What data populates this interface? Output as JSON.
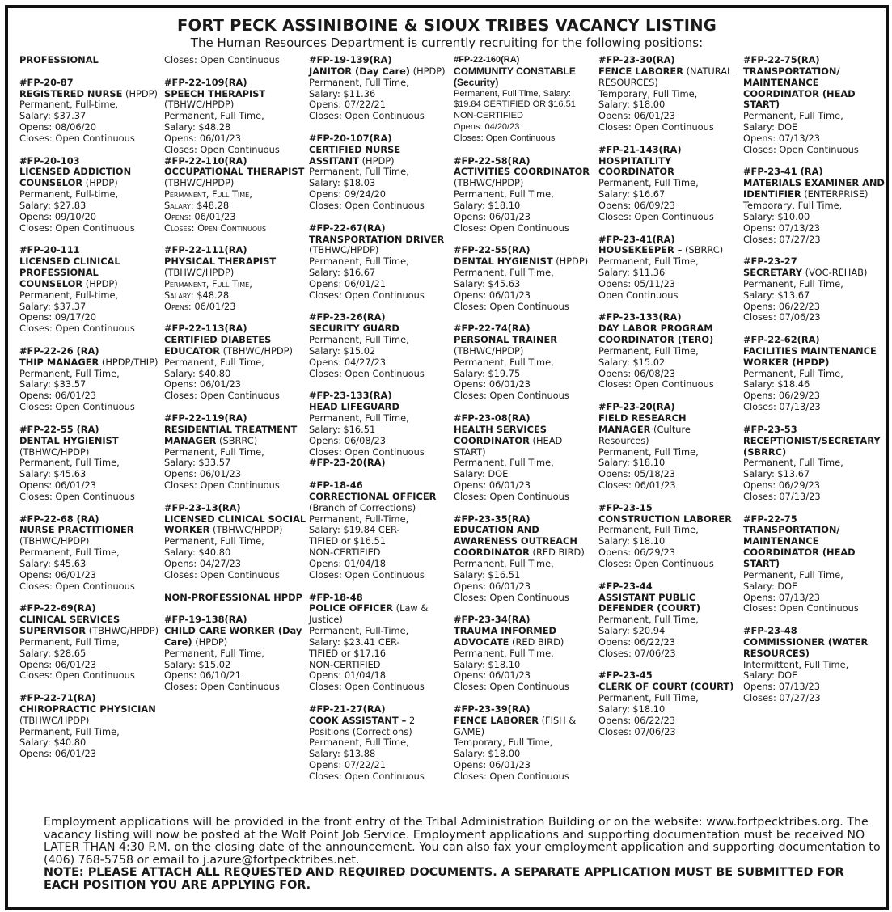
{
  "header": {
    "title": "FORT PECK ASSINIBOINE & SIOUX TRIBES VACANCY LISTING",
    "subtitle": "The Human Resources Department is currently recruiting for the following positions:"
  },
  "columns": [
    [
      {
        "section": "PROFESSIONAL"
      },
      {
        "code": "#FP-20-87",
        "title": "REGISTERED NURSE",
        "note": "(HPDP)",
        "lines": [
          "Permanent, Full-time,",
          "Salary: $37.37",
          "Opens: 08/06/20",
          "Closes: Open Continuous"
        ]
      },
      {
        "code": "#FP-20-103",
        "title": "LICENSED ADDICTION COUNSELOR",
        "note": "(HPDP)",
        "lines": [
          "Permanent, Full-time,",
          "Salary: $27.83",
          "Opens: 09/10/20",
          "Closes: Open Continuous"
        ]
      },
      {
        "code": "#FP-20-111",
        "title": "LICENSED CLINICAL PROFESSIONAL COUNSELOR",
        "note": "(HPDP)",
        "lines": [
          "Permanent, Full-time,",
          "Salary: $37.37",
          "Opens: 09/17/20",
          "Closes: Open Continuous"
        ]
      },
      {
        "code": "#FP-22-26 (RA)",
        "title": "THIP MANAGER",
        "note": "(HPDP/THIP)",
        "lines": [
          "Permanent, Full Time,",
          "Salary: $33.57",
          "Opens: 06/01/23",
          "Closes: Open Continuous"
        ]
      },
      {
        "code": "#FP-22-55 (RA)",
        "title": "DENTAL HYGIENIST",
        "note": "(TBHWC/HPDP)",
        "lines": [
          "Permanent, Full Time,",
          "Salary: $45.63",
          "Opens: 06/01/23",
          "Closes: Open Continuous"
        ]
      },
      {
        "code": "#FP-22-68 (RA)",
        "title": "NURSE PRACTITIONER",
        "note": "(TBHWC/HPDP)",
        "lines": [
          "Permanent, Full Time,",
          "Salary: $45.63",
          "Opens: 06/01/23",
          "Closes: Open Continuous"
        ]
      },
      {
        "code": "#FP-22-69(RA)",
        "title": "CLINICAL SERVICES SUPERVISOR",
        "note": "(TBHWC/HPDP)",
        "lines": [
          "Permanent, Full Time,",
          "Salary: $28.65",
          "Opens: 06/01/23",
          "Closes: Open Continuous"
        ]
      },
      {
        "code": "#FP-22-71(RA)",
        "title": "CHIROPRACTIC PHYSICIAN",
        "note": "(TBHWC/HPDP)",
        "lines": [
          "Permanent, Full Time,",
          "Salary: $40.80",
          "Opens: 06/01/23"
        ]
      }
    ],
    [
      {
        "lines": [
          "Closes: Open Continuous"
        ]
      },
      {
        "code": "#FP-22-109(RA)",
        "title": "SPEECH THERAPIST",
        "note": "(TBHWC/HPDP)",
        "lines": [
          "Permanent, Full Time,",
          "Salary: $48.28",
          "Opens: 06/01/23",
          "Closes: Open Continuous"
        ],
        "tight": true
      },
      {
        "code": "#FP-22-110(RA)",
        "title": "OCCUPATIONAL THERAPIST",
        "note": "(TBHWC/HPDP)",
        "lines": [
          "Permanent, Full Time,",
          "Salary: $48.28",
          "Opens: 06/01/23",
          "Closes: Open Continuous"
        ],
        "smallcaps": true
      },
      {
        "code": "#FP-22-111(RA)",
        "title": "PHYSICAL THERAPIST",
        "note": "(TBHWC/HPDP)",
        "lines": [
          "Permanent, Full Time,",
          "Salary: $48.28",
          "Opens: 06/01/23"
        ],
        "smallcaps": true
      },
      {
        "code": "#FP-22-113(RA)",
        "title": "CERTIFIED DIABETES EDUCATOR",
        "note": "(TBHWC/HPDP)",
        "lines": [
          "Permanent, Full Time,",
          "Salary: $40.80",
          "Opens: 06/01/23",
          "Closes: Open Continuous"
        ]
      },
      {
        "code": "#FP-22-119(RA)",
        "title": "RESIDENTIAL TREATMENT MANAGER",
        "note": "(SBRRC)",
        "lines": [
          "Permanent, Full Time,",
          "Salary: $33.57",
          "Opens: 06/01/23",
          "Closes: Open Continuous"
        ]
      },
      {
        "code": "#FP-23-13(RA)",
        "title": "LICENSED CLINICAL SOCIAL WORKER",
        "note": "(TBHWC/HPDP)",
        "lines": [
          "Permanent, Full Time,",
          "Salary: $40.80",
          "Opens: 04/27/23",
          "Closes: Open Continuous"
        ]
      },
      {
        "section": "NON-PROFESSIONAL HPDP"
      },
      {
        "code": "#FP-19-138(RA)",
        "title": "CHILD CARE WORKER (Day Care)",
        "note": "(HPDP)",
        "lines": [
          "Permanent, Full Time,",
          "Salary: $15.02",
          "Opens: 06/10/21",
          "Closes: Open Continuous"
        ]
      }
    ],
    [
      {
        "code": "#FP-19-139(RA)",
        "title": "JANITOR (Day Care)",
        "note": "(HPDP)",
        "lines": [
          "Permanent, Full Time,",
          "Salary: $11.36",
          "Opens: 07/22/21",
          "Closes: Open Continuous"
        ]
      },
      {
        "code": "#FP-20-107(RA)",
        "title": "CERTIFIED NURSE ASSITANT",
        "note": "(HPDP)",
        "lines": [
          "Permanent, Full Time,",
          "Salary: $18.03",
          "Opens: 09/24/20",
          "Closes: Open Continuous"
        ]
      },
      {
        "code": "#FP-22-67(RA)",
        "title": "TRANSPORTATION DRIVER",
        "note": "(TBHWC/HPDP)",
        "lines": [
          "Permanent, Full Time,",
          "Salary: $16.67",
          "Opens: 06/01/21",
          "Closes: Open Continuous"
        ]
      },
      {
        "code": "#FP-23-26(RA)",
        "title": "SECURITY GUARD",
        "note": "",
        "lines": [
          "Permanent, Full Time,",
          "Salary: $15.02",
          "Opens: 04/27/23",
          "Closes: Open Continuous"
        ]
      },
      {
        "code": "#FP-23-133(RA)",
        "title": "HEAD LIFEGUARD",
        "note": "",
        "lines": [
          "Permanent, Full Time,",
          "Salary: $16.51",
          "Opens: 06/08/23",
          "Closes: Open Continuous"
        ],
        "tight": true
      },
      {
        "code": "#FP-23-20(RA)",
        "title": "",
        "note": "",
        "lines": []
      },
      {
        "code": "#FP-18-46",
        "title": "CORRECTIONAL OFFICER",
        "note": "(Branch of Corrections)",
        "lines": [
          "Permanent, Full-Time,",
          "Salary: $19.84 CER-",
          "TIFIED or $16.51",
          "NON-CERTIFIED",
          "Opens: 01/04/18",
          "Closes: Open Continuous"
        ]
      },
      {
        "code": "#FP-18-48",
        "title": "POLICE OFFICER",
        "note": "(Law & Justice)",
        "lines": [
          "Permanent, Full-Time,",
          "Salary: $23.41 CER-",
          "TIFIED or $17.16",
          "NON-CERTIFIED",
          "Opens: 01/04/18",
          "Closes: Open Continuous"
        ]
      },
      {
        "code": "#FP-21-27(RA)",
        "title": "COOK ASSISTANT –",
        "note": "2 Positions (Corrections)",
        "lines": [
          "Permanent, Full Time,",
          "Salary: $13.88",
          "Opens: 07/22/21",
          "Closes: Open Continuous"
        ]
      }
    ],
    [
      {
        "code": "#FP-22-160(RA)",
        "title": "COMMUNITY CONSTABLE (Security)",
        "note": "",
        "lines": [
          "Permanent, Full Time, Salary: $19.84 CERTIFIED OR $16.51 NON-CERTIFIED",
          "Opens: 04/20/23",
          "Closes: Open Continuous"
        ],
        "narrow": true
      },
      {
        "code": "#FP-22-58(RA)",
        "title": "ACTIVITIES COORDINATOR",
        "note": "(TBHWC/HPDP)",
        "lines": [
          "Permanent, Full Time,",
          "Salary: $18.10",
          "Opens: 06/01/23",
          "Closes: Open Continuous"
        ]
      },
      {
        "code": "#FP-22-55(RA)",
        "title": "DENTAL HYGIENIST",
        "note": "(HPDP)",
        "lines": [
          "Permanent, Full Time,",
          "Salary: $45.63",
          "Opens: 06/01/23",
          "Closes: Open Continuous"
        ]
      },
      {
        "code": "#FP-22-74(RA)",
        "title": "PERSONAL TRAINER",
        "note": "(TBHWC/HPDP)",
        "lines": [
          "Permanent, Full Time,",
          "Salary: $19.75",
          "Opens: 06/01/23",
          "Closes: Open Continuous"
        ]
      },
      {
        "code": "#FP-23-08(RA)",
        "title": "HEALTH SERVICES COORDINATOR",
        "note": "(HEAD START)",
        "lines": [
          "Permanent, Full Time,",
          "Salary: DOE",
          "Opens: 06/01/23",
          "Closes: Open Continuous"
        ]
      },
      {
        "code": "#FP-23-35(RA)",
        "title": "EDUCATION AND AWARENESS OUTREACH COORDINATOR",
        "note": "(RED BIRD)",
        "lines": [
          "Permanent, Full Time,",
          "Salary: $16.51",
          "Opens: 06/01/23",
          "Closes: Open Continuous"
        ]
      },
      {
        "code": "#FP-23-34(RA)",
        "title": "TRAUMA INFORMED ADVOCATE",
        "note": "(RED BIRD)",
        "lines": [
          "Permanent, Full Time,",
          "Salary: $18.10",
          "Opens: 06/01/23",
          "Closes: Open Continuous"
        ]
      },
      {
        "code": "#FP-23-39(RA)",
        "title": "FENCE LABORER",
        "note": "(FISH & GAME)",
        "lines": [
          "Temporary, Full Time,",
          "Salary: $18.00",
          "Opens: 06/01/23",
          "Closes: Open Continuous"
        ]
      }
    ],
    [
      {
        "code": "#FP-23-30(RA)",
        "title": "FENCE LABORER",
        "note": "(NATURAL RESOURCES)",
        "lines": [
          "Temporary, Full Time,",
          "Salary: $18.00",
          "Opens: 06/01/23",
          "Closes: Open Continuous"
        ]
      },
      {
        "code": "#FP-21-143(RA)",
        "title": "HOSPITATLITY COORDINATOR",
        "note": "",
        "lines": [
          "Permanent, Full Time,",
          "Salary: $16.67",
          "Opens: 06/09/23",
          "Closes: Open Continuous"
        ]
      },
      {
        "code": "#FP-23-41(RA)",
        "title": "HOUSEKEEPER –",
        "note": "(SBRRC)",
        "lines": [
          "Permanent, Full Time,",
          "Salary: $11.36",
          "Opens: 05/11/23",
          "Open Continuous"
        ]
      },
      {
        "code": "#FP-23-133(RA)",
        "title": "DAY LABOR PROGRAM COORDINATOR (TERO)",
        "note": "",
        "lines": [
          "Permanent, Full Time,",
          "Salary: $15.02",
          "Opens: 06/08/23",
          "Closes: Open Continuous"
        ]
      },
      {
        "code": "#FP-23-20(RA)",
        "title": "FIELD RESEARCH MANAGER",
        "note": "(Culture Resources)",
        "lines": [
          "Permanent, Full Time,",
          "Salary: $18.10",
          "Opens: 05/18/23",
          "Closes: 06/01/23"
        ]
      },
      {
        "code": "#FP-23-15",
        "title": "CONSTRUCTION LABORER",
        "note": "",
        "lines": [
          "Permanent, Full Time,",
          "Salary: $18.10",
          "Opens: 06/29/23",
          "Closes: Open Continuous"
        ]
      },
      {
        "code": "#FP-23-44",
        "title": "ASSISTANT PUBLIC DEFENDER (COURT)",
        "note": "",
        "lines": [
          "Permanent, Full Time,",
          "Salary: $20.94",
          "Opens: 06/22/23",
          "Closes: 07/06/23"
        ]
      },
      {
        "code": "#FP-23-45",
        "title": "CLERK OF COURT (COURT)",
        "note": "",
        "lines": [
          "Permanent, Full Time,",
          "Salary: $18.10",
          "Opens: 06/22/23",
          "Closes: 07/06/23"
        ]
      }
    ],
    [
      {
        "code": "#FP-22-75(RA)",
        "title": "TRANSPORTATION/ MAINTENANCE COORDINATOR (HEAD START)",
        "note": "",
        "lines": [
          "Permanent, Full Time,",
          "Salary: DOE",
          "Opens: 07/13/23",
          "Closes: Open Continuous"
        ]
      },
      {
        "code": "#FP-23-41 (RA)",
        "title": "MATERIALS EXAMINER AND IDENTIFIER",
        "note": "(ENTERPRISE)",
        "lines": [
          "Temporary, Full Time,",
          "Salary: $10.00",
          "Opens: 07/13/23",
          "Closes: 07/27/23"
        ]
      },
      {
        "code": "#FP-23-27",
        "title": "SECRETARY",
        "note": "(VOC-REHAB)",
        "lines": [
          "Permanent, Full Time,",
          "Salary: $13.67",
          "Opens: 06/22/23",
          "Closes: 07/06/23"
        ]
      },
      {
        "code": "#FP-22-62(RA)",
        "title": "FACILITIES MAINTENANCE WORKER (HPDP)",
        "note": "",
        "lines": [
          "Permanent, Full Time,",
          "Salary: $18.46",
          "Opens: 06/29/23",
          "Closes: 07/13/23"
        ]
      },
      {
        "code": "#FP-23-53",
        "title": "RECEPTIONIST/SECRETARY (SBRRC)",
        "note": "",
        "lines": [
          "Permanent, Full Time,",
          "Salary: $13.67",
          "Opens: 06/29/23",
          "Closes: 07/13/23"
        ]
      },
      {
        "code": "#FP-22-75",
        "title": "TRANSPORTATION/ MAINTENANCE COORDINATOR (HEAD START)",
        "note": "",
        "lines": [
          "Permanent, Full Time,",
          "Salary: DOE",
          "Opens: 07/13/23",
          "Closes: Open Continuous"
        ]
      },
      {
        "code": "#FP-23-48",
        "title": "COMMISSIONER (WATER RESOURCES)",
        "note": "",
        "lines": [
          "Intermittent, Full Time,",
          "Salary: DOE",
          "Opens: 07/13/23",
          "Closes: 07/27/23"
        ]
      }
    ]
  ],
  "footer": {
    "text": "Employment applications will be provided in the front entry of the Tribal Administration Building or on the website: www.fortpecktribes.org. The vacancy listing will now be posted at the Wolf Point Job Service. Employment applications and supporting documentation must be received NO LATER THAN 4:30 P.M. on the closing date of the announcement. You can also fax your employment application and supporting documentation to (406) 768-5758 or email to j.azure@fortpecktribes.net.",
    "note": "NOTE:  PLEASE ATTACH ALL REQUESTED AND REQUIRED DOCUMENTS. A SEPARATE APPLICATION MUST BE SUBMITTED FOR EACH POSITION YOU ARE APPLYING FOR."
  }
}
